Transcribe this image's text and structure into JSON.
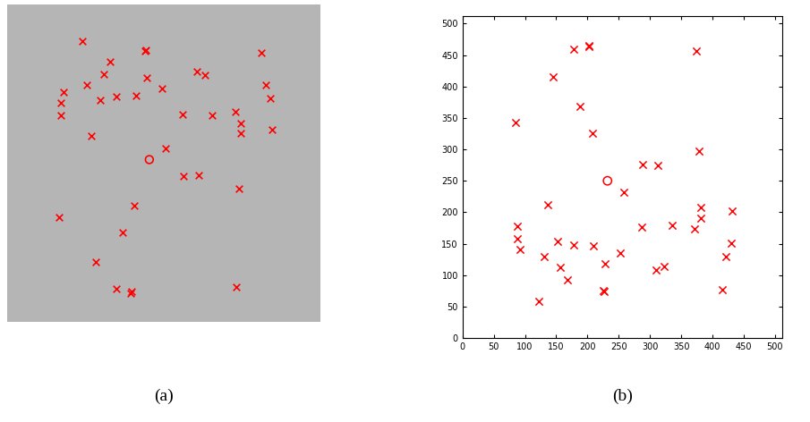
{
  "chart_data": [
    {
      "type": "image",
      "caption": "(a)",
      "tick_labels": false
    },
    {
      "type": "scatter",
      "caption": "(b)",
      "xlim": [
        0,
        512
      ],
      "ylim": [
        0,
        512
      ],
      "xticks": [
        0,
        50,
        100,
        150,
        200,
        250,
        300,
        350,
        400,
        450,
        500
      ],
      "yticks": [
        0,
        50,
        100,
        150,
        200,
        250,
        300,
        350,
        400,
        450,
        500
      ],
      "grid": false,
      "series": [
        {
          "color": "red",
          "marker": "x",
          "x": [
            85,
            88,
            88,
            92,
            122,
            130,
            137,
            145,
            152,
            157,
            168,
            178,
            178,
            188,
            202,
            203,
            208,
            210,
            225,
            226,
            228,
            252,
            258,
            287,
            288,
            310,
            312,
            323,
            335,
            372,
            374,
            379,
            382,
            382,
            415,
            422,
            430,
            432
          ],
          "values": [
            343,
            178,
            158,
            141,
            59,
            129,
            212,
            415,
            154,
            112,
            92,
            148,
            459,
            368,
            465,
            463,
            325,
            147,
            75,
            74,
            118,
            135,
            232,
            177,
            276,
            108,
            275,
            114,
            179,
            173,
            456,
            297,
            208,
            191,
            77,
            129,
            151,
            202
          ]
        },
        {
          "color": "red",
          "marker": "o",
          "x": [
            232
          ],
          "values": [
            250
          ]
        }
      ]
    }
  ]
}
